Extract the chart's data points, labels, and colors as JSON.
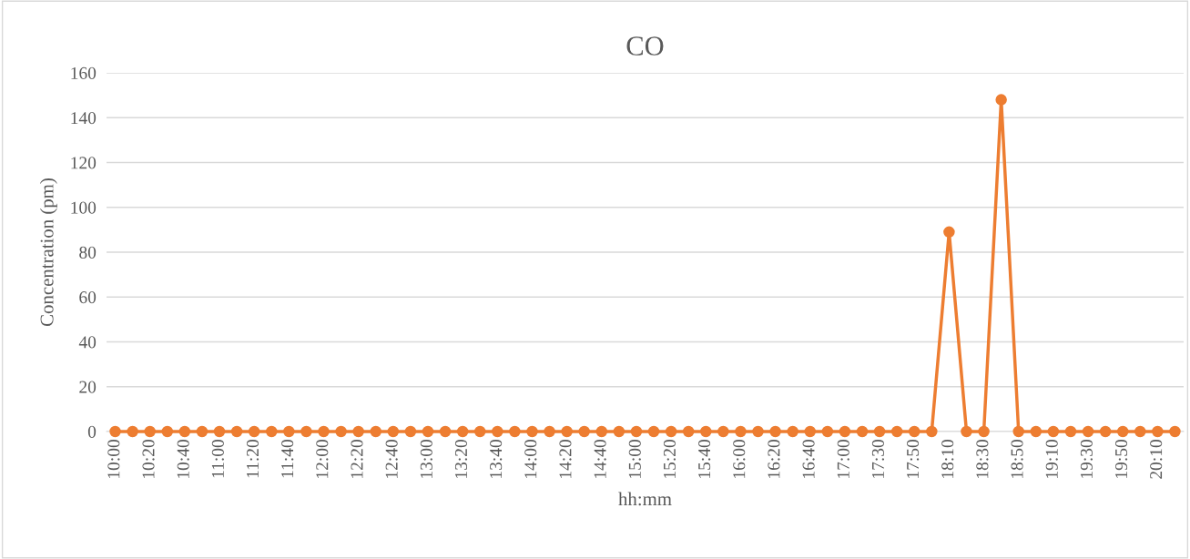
{
  "chart_data": {
    "type": "line",
    "title": "CO",
    "xlabel": "hh:mm",
    "ylabel": "Concentration (pm)",
    "categories": [
      "10:00",
      null,
      "10:20",
      null,
      "10:40",
      null,
      "11:00",
      null,
      "11:20",
      null,
      "11:40",
      null,
      "12:00",
      null,
      "12:20",
      null,
      "12:40",
      null,
      "13:00",
      null,
      "13:20",
      null,
      "13:40",
      null,
      "14:00",
      null,
      "14:20",
      null,
      "14:40",
      null,
      "15:00",
      null,
      "15:20",
      null,
      "15:40",
      null,
      "16:00",
      null,
      "16:20",
      null,
      "16:40",
      null,
      "17:00",
      null,
      "17:30",
      null,
      "17:50",
      null,
      "18:10",
      null,
      "18:30",
      null,
      "18:50",
      null,
      "19:10",
      null,
      "19:30",
      null,
      "19:50",
      null,
      "20:10",
      null
    ],
    "series": [
      {
        "color": "#ed7d31",
        "values": [
          0,
          0,
          0,
          0,
          0,
          0,
          0,
          0,
          0,
          0,
          0,
          0,
          0,
          0,
          0,
          0,
          0,
          0,
          0,
          0,
          0,
          0,
          0,
          0,
          0,
          0,
          0,
          0,
          0,
          0,
          0,
          0,
          0,
          0,
          0,
          0,
          0,
          0,
          0,
          0,
          0,
          0,
          0,
          0,
          0,
          0,
          0,
          0,
          89,
          0,
          0,
          148,
          0,
          0,
          0,
          0,
          0,
          0,
          0,
          0,
          0,
          0
        ]
      }
    ],
    "ylim": [
      0,
      160
    ],
    "yticks": [
      0,
      20,
      40,
      60,
      80,
      100,
      120,
      140,
      160
    ],
    "grid": "y",
    "marker": "circle",
    "line_style": "solid",
    "legend": false
  }
}
